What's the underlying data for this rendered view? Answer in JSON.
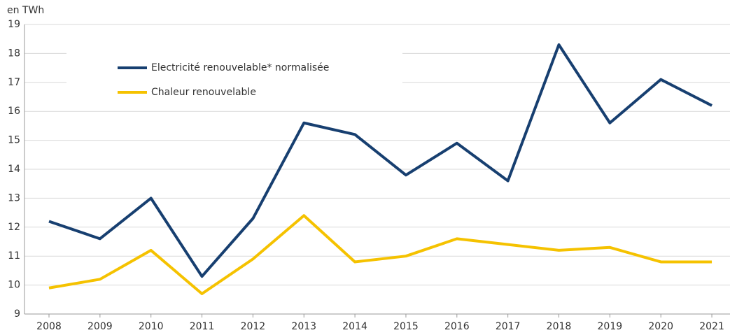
{
  "chart_data": {
    "type": "line",
    "y_label": "en TWh",
    "categories": [
      "2008",
      "2009",
      "2010",
      "2011",
      "2012",
      "2013",
      "2014",
      "2015",
      "2016",
      "2017",
      "2018",
      "2019",
      "2020",
      "2021"
    ],
    "series": [
      {
        "name": "Electricité renouvelable* normalisée",
        "color": "#173f70",
        "values": [
          12.2,
          11.6,
          13.0,
          10.3,
          12.3,
          15.6,
          15.2,
          13.8,
          14.9,
          13.6,
          18.3,
          15.6,
          17.1,
          16.2
        ]
      },
      {
        "name": "Chaleur renouvelable",
        "color": "#f5c200",
        "values": [
          9.9,
          10.2,
          11.2,
          9.7,
          10.9,
          12.4,
          10.8,
          11.0,
          11.6,
          11.4,
          11.2,
          11.3,
          10.8,
          10.8
        ]
      }
    ],
    "ylim": [
      9,
      19
    ],
    "yticks": [
      9,
      10,
      11,
      12,
      13,
      14,
      15,
      16,
      17,
      18,
      19
    ],
    "grid": true,
    "legend": "upper left"
  }
}
